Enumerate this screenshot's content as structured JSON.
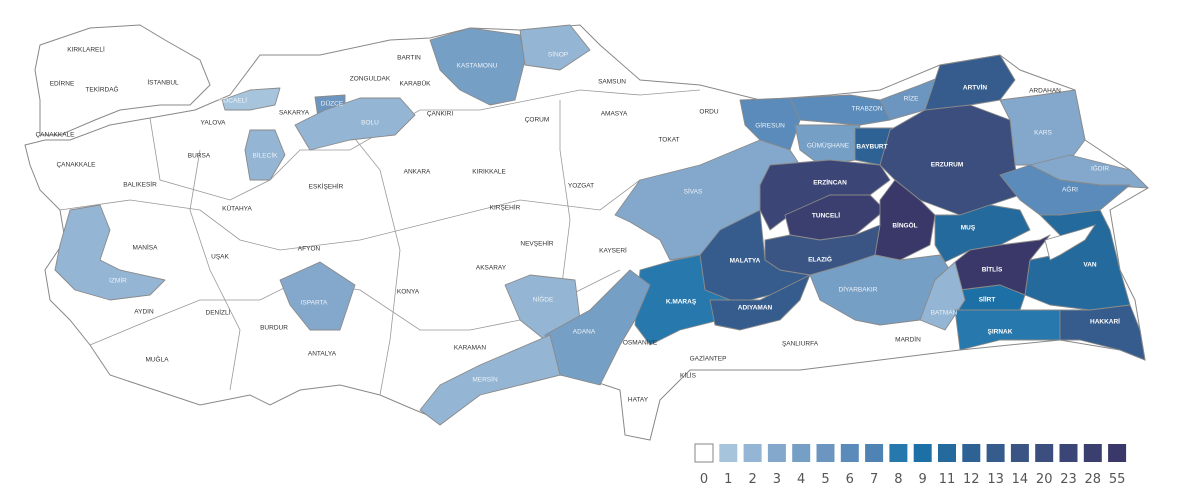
{
  "legend": {
    "values": [
      0,
      1,
      2,
      3,
      4,
      5,
      6,
      7,
      8,
      9,
      11,
      12,
      13,
      14,
      20,
      23,
      28,
      55
    ],
    "labels": [
      "0",
      "1",
      "2",
      "3",
      "4",
      "5",
      "6",
      "7",
      "8",
      "9",
      "11",
      "12",
      "13",
      "14",
      "20",
      "23",
      "28",
      "55"
    ],
    "colors": [
      "#ffffff",
      "#a7c4dd",
      "#94b5d3",
      "#84a8cb",
      "#769fc6",
      "#6c96c0",
      "#5a8bbb",
      "#4f83b4",
      "#2779ad",
      "#1c70a6",
      "#246a9d",
      "#2e6294",
      "#355c8c",
      "#3a5584",
      "#3b4e7d",
      "#3c4676",
      "#3b3f6f",
      "#3a3769"
    ]
  },
  "provinces": [
    {
      "name": "KIRKLARELİ",
      "value": 0
    },
    {
      "name": "EDİRNE",
      "value": 0
    },
    {
      "name": "TEKİRDAĞ",
      "value": 0
    },
    {
      "name": "İSTANBUL",
      "value": 0
    },
    {
      "name": "KOCAELİ",
      "value": 1
    },
    {
      "name": "YALOVA",
      "value": 0
    },
    {
      "name": "SAKARYA",
      "value": 0
    },
    {
      "name": "DÜZCE",
      "value": 5
    },
    {
      "name": "BOLU",
      "value": 2
    },
    {
      "name": "ZONGULDAK",
      "value": 0
    },
    {
      "name": "BARTIN",
      "value": 0
    },
    {
      "name": "KARABÜK",
      "value": 0
    },
    {
      "name": "KASTAMONU",
      "value": 4
    },
    {
      "name": "SİNOP",
      "value": 2
    },
    {
      "name": "SAMSUN",
      "value": 0
    },
    {
      "name": "ÇANKIRI",
      "value": 0
    },
    {
      "name": "ÇORUM",
      "value": 0
    },
    {
      "name": "AMASYA",
      "value": 0
    },
    {
      "name": "TOKAT",
      "value": 0
    },
    {
      "name": "ORDU",
      "value": 0
    },
    {
      "name": "GİRESUN",
      "value": 6
    },
    {
      "name": "TRABZON",
      "value": 6
    },
    {
      "name": "RİZE",
      "value": 5
    },
    {
      "name": "ARTVİN",
      "value": 13
    },
    {
      "name": "ARDAHAN",
      "value": 0
    },
    {
      "name": "KARS",
      "value": 3
    },
    {
      "name": "GÜMÜŞHANE",
      "value": 4
    },
    {
      "name": "BAYBURT",
      "value": 12
    },
    {
      "name": "ERZURUM",
      "value": 20
    },
    {
      "name": "IĞDIR",
      "value": 3
    },
    {
      "name": "AĞRI",
      "value": 6
    },
    {
      "name": "ÇANAKKALE",
      "value": 0
    },
    {
      "name": "ÇANAKKALE",
      "value": 0
    },
    {
      "name": "BALIKESİR",
      "value": 0
    },
    {
      "name": "BURSA",
      "value": 0
    },
    {
      "name": "BİLECİK",
      "value": 2
    },
    {
      "name": "ESKİŞEHİR",
      "value": 0
    },
    {
      "name": "KÜTAHYA",
      "value": 0
    },
    {
      "name": "ANKARA",
      "value": 0
    },
    {
      "name": "KIRIKKALE",
      "value": 0
    },
    {
      "name": "YOZGAT",
      "value": 0
    },
    {
      "name": "KIRŞEHİR",
      "value": 0
    },
    {
      "name": "SİVAS",
      "value": 3
    },
    {
      "name": "ERZİNCAN",
      "value": 23
    },
    {
      "name": "TUNCELİ",
      "value": 28
    },
    {
      "name": "BİNGÖL",
      "value": 55
    },
    {
      "name": "MUŞ",
      "value": 11
    },
    {
      "name": "NEVŞEHİR",
      "value": 0
    },
    {
      "name": "KAYSERİ",
      "value": 0
    },
    {
      "name": "AKSARAY",
      "value": 0
    },
    {
      "name": "MANİSA",
      "value": 0
    },
    {
      "name": "UŞAK",
      "value": 0
    },
    {
      "name": "AFYON",
      "value": 0
    },
    {
      "name": "İZMİR",
      "value": 2
    },
    {
      "name": "MALATYA",
      "value": 13
    },
    {
      "name": "ELAZIĞ",
      "value": 14
    },
    {
      "name": "BİTLİS",
      "value": 55
    },
    {
      "name": "VAN",
      "value": 11
    },
    {
      "name": "NİĞDE",
      "value": 2
    },
    {
      "name": "KONYA",
      "value": 0
    },
    {
      "name": "ISPARTA",
      "value": 3
    },
    {
      "name": "AYDIN",
      "value": 0
    },
    {
      "name": "DENİZLİ",
      "value": 0
    },
    {
      "name": "BURDUR",
      "value": 0
    },
    {
      "name": "DİYARBAKIR",
      "value": 4
    },
    {
      "name": "SİİRT",
      "value": 9
    },
    {
      "name": "K.MARAŞ",
      "value": 8
    },
    {
      "name": "ADIYAMAN",
      "value": 13
    },
    {
      "name": "ADANA",
      "value": 4
    },
    {
      "name": "BATMAN",
      "value": 2
    },
    {
      "name": "ŞIRNAK",
      "value": 8
    },
    {
      "name": "HAKKARİ",
      "value": 13
    },
    {
      "name": "MUĞLA",
      "value": 0
    },
    {
      "name": "ANTALYA",
      "value": 0
    },
    {
      "name": "KARAMAN",
      "value": 0
    },
    {
      "name": "OSMANİYE",
      "value": 0
    },
    {
      "name": "GAZİANTEP",
      "value": 0
    },
    {
      "name": "ŞANLIURFA",
      "value": 0
    },
    {
      "name": "MARDİN",
      "value": 0
    },
    {
      "name": "MERSİN",
      "value": 2
    },
    {
      "name": "KİLİS",
      "value": 0
    },
    {
      "name": "HATAY",
      "value": 0
    }
  ]
}
